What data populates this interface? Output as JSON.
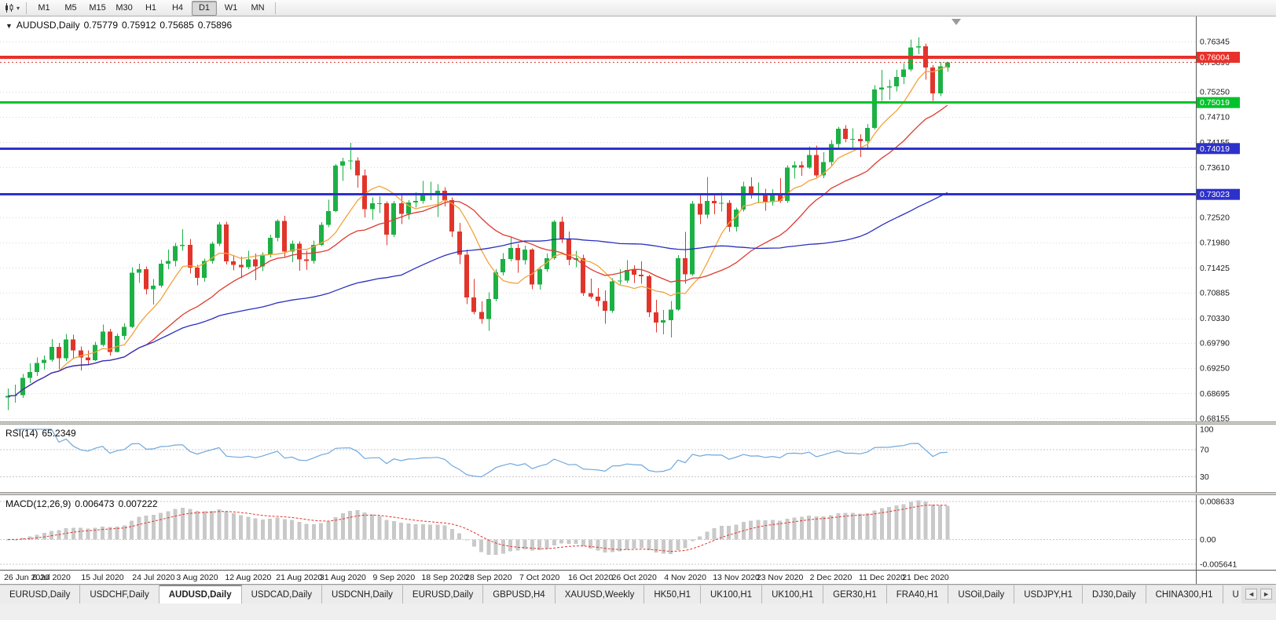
{
  "toolbar": {
    "timeframes": [
      "M1",
      "M5",
      "M15",
      "M30",
      "H1",
      "H4",
      "D1",
      "W1",
      "MN"
    ],
    "selected_timeframe": "D1"
  },
  "main_chart": {
    "title": {
      "symbol": "AUDUSD,Daily",
      "open": "0.75779",
      "high": "0.75912",
      "low": "0.75685",
      "close": "0.75896"
    },
    "y_domain": [
      0.68155,
      0.76345
    ],
    "grid_labels": [
      "0.76345",
      "0.75250",
      "0.74710",
      "0.74155",
      "0.73610",
      "0.72520",
      "0.71980",
      "0.71425",
      "0.70885",
      "0.70330",
      "0.69790",
      "0.69250",
      "0.68695",
      "0.68155"
    ],
    "bid": {
      "value": 0.75896,
      "label": "0.75896"
    },
    "hlines": [
      {
        "value": 0.76004,
        "label": "0.76004",
        "color": "#e8312a",
        "thickness": 4
      },
      {
        "value": 0.75019,
        "label": "0.75019",
        "color": "#00c32b",
        "thickness": 3
      },
      {
        "value": 0.74019,
        "label": "0.74019",
        "color": "#2d31cc",
        "thickness": 3
      },
      {
        "value": 0.73023,
        "label": "0.73023",
        "color": "#2d31cc",
        "thickness": 3
      }
    ],
    "colors": {
      "bull": "#1db045",
      "bear": "#e1352b",
      "grid": "#d9d9d9",
      "background": "#ffffff",
      "axis_text": "#1a1a1a",
      "ma_fast": "#f2a33c",
      "ma_mid": "#dd3b30",
      "ma_slow": "#2a2fbe"
    }
  },
  "chart_data": {
    "type": "candlestick",
    "symbol": "AUDUSD",
    "timeframe": "Daily",
    "note": "daily OHLC bars, 26 Jun 2020 - 24 Dec 2020, values read from chart",
    "candles": [
      [
        0.6861,
        0.688,
        0.6833,
        0.6864
      ],
      [
        0.6864,
        0.6889,
        0.685,
        0.6866
      ],
      [
        0.6866,
        0.6912,
        0.686,
        0.6903
      ],
      [
        0.6903,
        0.6935,
        0.6892,
        0.6916
      ],
      [
        0.6916,
        0.6948,
        0.6908,
        0.6936
      ],
      [
        0.6936,
        0.6952,
        0.6921,
        0.6943
      ],
      [
        0.6943,
        0.6988,
        0.6938,
        0.6971
      ],
      [
        0.6971,
        0.6979,
        0.6922,
        0.6946
      ],
      [
        0.6946,
        0.6999,
        0.694,
        0.6987
      ],
      [
        0.6987,
        0.6997,
        0.6944,
        0.6963
      ],
      [
        0.6963,
        0.6972,
        0.692,
        0.6948
      ],
      [
        0.6948,
        0.6963,
        0.6931,
        0.6942
      ],
      [
        0.6942,
        0.6982,
        0.694,
        0.6975
      ],
      [
        0.6975,
        0.7019,
        0.6972,
        0.7004
      ],
      [
        0.7004,
        0.701,
        0.6952,
        0.696
      ],
      [
        0.696,
        0.7,
        0.6959,
        0.6995
      ],
      [
        0.6995,
        0.7022,
        0.6986,
        0.7014
      ],
      [
        0.7014,
        0.7144,
        0.7012,
        0.7132
      ],
      [
        0.7132,
        0.7152,
        0.711,
        0.714
      ],
      [
        0.714,
        0.7146,
        0.7085,
        0.7096
      ],
      [
        0.7096,
        0.7118,
        0.7063,
        0.7104
      ],
      [
        0.7104,
        0.716,
        0.71,
        0.7152
      ],
      [
        0.7152,
        0.7182,
        0.714,
        0.7158
      ],
      [
        0.7158,
        0.7197,
        0.7146,
        0.719
      ],
      [
        0.719,
        0.7227,
        0.718,
        0.7193
      ],
      [
        0.7193,
        0.7205,
        0.713,
        0.7143
      ],
      [
        0.7143,
        0.7149,
        0.7105,
        0.7121
      ],
      [
        0.7121,
        0.7163,
        0.7112,
        0.7158
      ],
      [
        0.7158,
        0.7199,
        0.7152,
        0.7195
      ],
      [
        0.7195,
        0.7242,
        0.719,
        0.7237
      ],
      [
        0.7237,
        0.7243,
        0.715,
        0.7157
      ],
      [
        0.7157,
        0.717,
        0.7137,
        0.7149
      ],
      [
        0.7149,
        0.7167,
        0.712,
        0.7144
      ],
      [
        0.7144,
        0.718,
        0.714,
        0.7161
      ],
      [
        0.7161,
        0.7174,
        0.7116,
        0.7146
      ],
      [
        0.7146,
        0.7176,
        0.7135,
        0.7171
      ],
      [
        0.7171,
        0.7215,
        0.7165,
        0.7208
      ],
      [
        0.7208,
        0.7248,
        0.72,
        0.7245
      ],
      [
        0.7245,
        0.7256,
        0.7167,
        0.7178
      ],
      [
        0.7178,
        0.7202,
        0.7155,
        0.7195
      ],
      [
        0.7195,
        0.72,
        0.7136,
        0.7161
      ],
      [
        0.7161,
        0.718,
        0.7138,
        0.7158
      ],
      [
        0.7158,
        0.7202,
        0.7152,
        0.7193
      ],
      [
        0.7193,
        0.7242,
        0.719,
        0.7236
      ],
      [
        0.7236,
        0.7291,
        0.7231,
        0.7266
      ],
      [
        0.7266,
        0.7368,
        0.7263,
        0.7365
      ],
      [
        0.7365,
        0.7382,
        0.7332,
        0.7374
      ],
      [
        0.7374,
        0.7414,
        0.7356,
        0.7376
      ],
      [
        0.7376,
        0.7383,
        0.7317,
        0.7344
      ],
      [
        0.7344,
        0.7356,
        0.7252,
        0.727
      ],
      [
        0.727,
        0.7296,
        0.7247,
        0.7283
      ],
      [
        0.7283,
        0.7298,
        0.7262,
        0.7283
      ],
      [
        0.7283,
        0.7287,
        0.7192,
        0.7215
      ],
      [
        0.7215,
        0.7288,
        0.721,
        0.7283
      ],
      [
        0.7283,
        0.7302,
        0.7238,
        0.726
      ],
      [
        0.726,
        0.729,
        0.7248,
        0.7285
      ],
      [
        0.7285,
        0.7307,
        0.7274,
        0.7288
      ],
      [
        0.7288,
        0.7332,
        0.7282,
        0.7302
      ],
      [
        0.7302,
        0.733,
        0.729,
        0.7304
      ],
      [
        0.7304,
        0.7325,
        0.7253,
        0.731
      ],
      [
        0.731,
        0.7318,
        0.7276,
        0.729
      ],
      [
        0.729,
        0.7296,
        0.721,
        0.7222
      ],
      [
        0.7222,
        0.724,
        0.7151,
        0.7171
      ],
      [
        0.7171,
        0.7182,
        0.7064,
        0.7078
      ],
      [
        0.7078,
        0.7118,
        0.7042,
        0.7047
      ],
      [
        0.7047,
        0.707,
        0.7021,
        0.7031
      ],
      [
        0.7031,
        0.7089,
        0.7006,
        0.7075
      ],
      [
        0.7075,
        0.714,
        0.707,
        0.7133
      ],
      [
        0.7133,
        0.7175,
        0.7126,
        0.7162
      ],
      [
        0.7162,
        0.7209,
        0.7157,
        0.7186
      ],
      [
        0.7186,
        0.7194,
        0.7132,
        0.7159
      ],
      [
        0.7159,
        0.7191,
        0.715,
        0.7182
      ],
      [
        0.7182,
        0.7185,
        0.7096,
        0.7106
      ],
      [
        0.7106,
        0.7146,
        0.7095,
        0.714
      ],
      [
        0.714,
        0.7174,
        0.7134,
        0.7164
      ],
      [
        0.7164,
        0.7246,
        0.716,
        0.7243
      ],
      [
        0.7243,
        0.7254,
        0.7197,
        0.7205
      ],
      [
        0.7205,
        0.7222,
        0.7148,
        0.716
      ],
      [
        0.716,
        0.718,
        0.7144,
        0.7164
      ],
      [
        0.7164,
        0.7171,
        0.7082,
        0.7088
      ],
      [
        0.7088,
        0.7119,
        0.7076,
        0.708
      ],
      [
        0.708,
        0.7099,
        0.7059,
        0.7071
      ],
      [
        0.7071,
        0.7094,
        0.7021,
        0.7049
      ],
      [
        0.7049,
        0.712,
        0.7045,
        0.7113
      ],
      [
        0.7113,
        0.714,
        0.7106,
        0.7115
      ],
      [
        0.7115,
        0.7159,
        0.711,
        0.7138
      ],
      [
        0.7138,
        0.7148,
        0.711,
        0.7128
      ],
      [
        0.7128,
        0.7157,
        0.7108,
        0.7124
      ],
      [
        0.7124,
        0.7128,
        0.7036,
        0.7046
      ],
      [
        0.7046,
        0.7073,
        0.7002,
        0.7024
      ],
      [
        0.7024,
        0.7051,
        0.6998,
        0.7029
      ],
      [
        0.7029,
        0.7071,
        0.6991,
        0.7052
      ],
      [
        0.7052,
        0.717,
        0.7049,
        0.7164
      ],
      [
        0.7164,
        0.7221,
        0.7108,
        0.7129
      ],
      [
        0.7129,
        0.7288,
        0.7125,
        0.7282
      ],
      [
        0.7282,
        0.73,
        0.7238,
        0.7258
      ],
      [
        0.7258,
        0.734,
        0.725,
        0.7288
      ],
      [
        0.7288,
        0.7302,
        0.7259,
        0.7283
      ],
      [
        0.7283,
        0.7306,
        0.7265,
        0.7284
      ],
      [
        0.7284,
        0.729,
        0.7221,
        0.7232
      ],
      [
        0.7232,
        0.7274,
        0.7222,
        0.7269
      ],
      [
        0.7269,
        0.733,
        0.7265,
        0.732
      ],
      [
        0.732,
        0.7339,
        0.7293,
        0.7301
      ],
      [
        0.7301,
        0.7328,
        0.7283,
        0.7304
      ],
      [
        0.7304,
        0.7315,
        0.7267,
        0.7286
      ],
      [
        0.7286,
        0.7314,
        0.7278,
        0.7303
      ],
      [
        0.7303,
        0.7338,
        0.7284,
        0.7288
      ],
      [
        0.7288,
        0.7366,
        0.7284,
        0.7361
      ],
      [
        0.7361,
        0.7374,
        0.7337,
        0.7366
      ],
      [
        0.7366,
        0.7374,
        0.7343,
        0.7361
      ],
      [
        0.7361,
        0.7407,
        0.7358,
        0.7388
      ],
      [
        0.7388,
        0.7408,
        0.7339,
        0.7344
      ],
      [
        0.7344,
        0.7394,
        0.7338,
        0.7373
      ],
      [
        0.7373,
        0.742,
        0.7365,
        0.7412
      ],
      [
        0.7412,
        0.7449,
        0.74,
        0.7445
      ],
      [
        0.7445,
        0.7453,
        0.7416,
        0.7423
      ],
      [
        0.7423,
        0.7446,
        0.7401,
        0.7423
      ],
      [
        0.7423,
        0.7433,
        0.7384,
        0.7418
      ],
      [
        0.7418,
        0.7455,
        0.7403,
        0.7447
      ],
      [
        0.7447,
        0.754,
        0.7443,
        0.753
      ],
      [
        0.753,
        0.7573,
        0.7506,
        0.7535
      ],
      [
        0.7535,
        0.7552,
        0.7508,
        0.7537
      ],
      [
        0.7537,
        0.7573,
        0.7526,
        0.7558
      ],
      [
        0.7558,
        0.7588,
        0.7542,
        0.7574
      ],
      [
        0.7574,
        0.7639,
        0.757,
        0.7622
      ],
      [
        0.7622,
        0.7644,
        0.7607,
        0.7624
      ],
      [
        0.7624,
        0.763,
        0.7552,
        0.7578
      ],
      [
        0.7578,
        0.7583,
        0.7506,
        0.7522
      ],
      [
        0.7522,
        0.759,
        0.7516,
        0.7581
      ],
      [
        0.75779,
        0.75912,
        0.75685,
        0.75896
      ]
    ],
    "date_labels": [
      {
        "text": "26 Jun 2020",
        "index": 0
      },
      {
        "text": "6 Jul 2020",
        "index": 6
      },
      {
        "text": "15 Jul 2020",
        "index": 13
      },
      {
        "text": "24 Jul 2020",
        "index": 20
      },
      {
        "text": "3 Aug 2020",
        "index": 26
      },
      {
        "text": "12 Aug 2020",
        "index": 33
      },
      {
        "text": "21 Aug 2020",
        "index": 40
      },
      {
        "text": "31 Aug 2020",
        "index": 46
      },
      {
        "text": "9 Sep 2020",
        "index": 53
      },
      {
        "text": "18 Sep 2020",
        "index": 60
      },
      {
        "text": "28 Sep 2020",
        "index": 66
      },
      {
        "text": "7 Oct 2020",
        "index": 73
      },
      {
        "text": "16 Oct 2020",
        "index": 80
      },
      {
        "text": "26 Oct 2020",
        "index": 86
      },
      {
        "text": "4 Nov 2020",
        "index": 93
      },
      {
        "text": "13 Nov 2020",
        "index": 100
      },
      {
        "text": "23 Nov 2020",
        "index": 106
      },
      {
        "text": "2 Dec 2020",
        "index": 113
      },
      {
        "text": "11 Dec 2020",
        "index": 120
      },
      {
        "text": "21 Dec 2020",
        "index": 126
      }
    ],
    "moving_averages": [
      {
        "period": 8,
        "color": "#f2a33c"
      },
      {
        "period": 20,
        "color": "#dd3b30"
      },
      {
        "period": 55,
        "color": "#2a2fbe"
      }
    ]
  },
  "rsi_panel": {
    "name": "RSI(14)",
    "value": "65.2349",
    "axis_labels": [
      "100",
      "70",
      "30"
    ],
    "levels": [
      70,
      30
    ],
    "color": "#6fa8dc"
  },
  "macd_panel": {
    "name": "MACD(12,26,9)",
    "main_value": "0.006473",
    "signal_value": "0.007222",
    "axis_labels": [
      "0.008633",
      "0.00",
      "-0.005641"
    ],
    "y_domain": [
      -0.005641,
      0.008633
    ],
    "colors": {
      "histogram": "#c9c9c9",
      "signal": "#e1352b"
    }
  },
  "tab_bar": {
    "tabs": [
      "EURUSD,Daily",
      "USDCHF,Daily",
      "AUDUSD,Daily",
      "USDCAD,Daily",
      "USDCNH,Daily",
      "EURUSD,Daily",
      "GBPUSD,H4",
      "XAUUSD,Weekly",
      "HK50,H1",
      "UK100,H1",
      "UK100,H1",
      "GER30,H1",
      "FRA40,H1",
      "USOil,Daily",
      "USDJPY,H1",
      "DJ30,Daily",
      "CHINA300,H1",
      "U"
    ],
    "active_index": 2,
    "scroll_left": "◄",
    "scroll_right": "►"
  }
}
